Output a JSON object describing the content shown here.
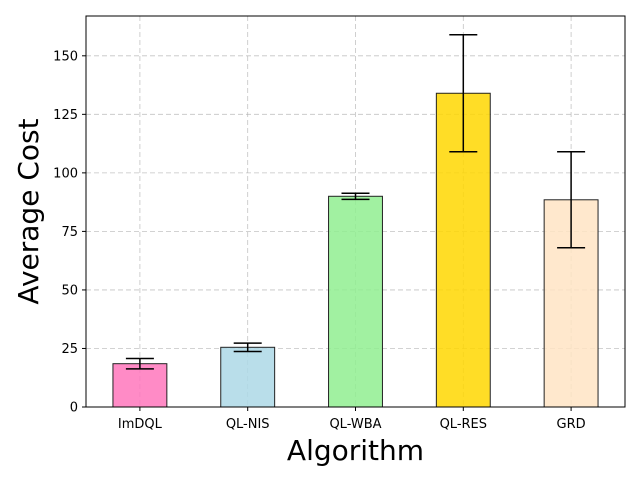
{
  "chart_data": {
    "type": "bar",
    "title": "",
    "xlabel": "Algorithm",
    "ylabel": "Average Cost",
    "categories": [
      "ImDQL",
      "QL-NIS",
      "QL-WBA",
      "QL-RES",
      "GRD"
    ],
    "values": [
      18.5,
      25.5,
      90,
      134,
      88.5
    ],
    "errors": [
      2.2,
      1.8,
      1.3,
      25,
      20.5
    ],
    "colors": [
      "#ff77bc",
      "#add8e6",
      "#90ee90",
      "#ffd700",
      "#ffe4c4"
    ],
    "ylim": [
      0,
      167
    ],
    "yticks": [
      0,
      25,
      50,
      75,
      100,
      125,
      150
    ],
    "grid": true
  }
}
